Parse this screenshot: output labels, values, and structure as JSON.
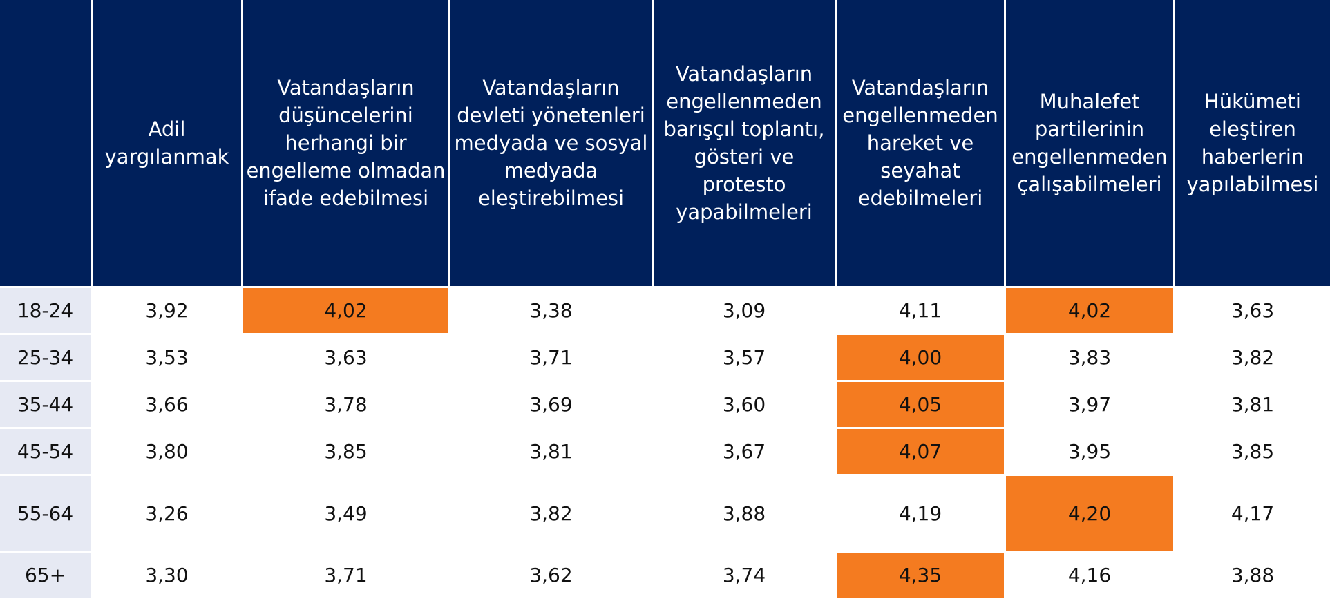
{
  "table": {
    "headers": [
      "",
      "Adil yargılanmak",
      "Vatandaşların düşüncelerini herhangi bir engelleme olmadan ifade edebilmesi",
      "Vatandaşların devleti yönetenleri medyada ve sosyal medyada eleştirebilmesi",
      "Vatandaşların engellenmeden barışçıl toplantı, gösteri ve protesto yapabilmeleri",
      "Vatandaşların engellenmeden hareket ve seyahat edebilmeleri",
      "Muhalefet partilerinin engellenmeden çalışabilmeleri",
      "Hükümeti eleştiren haberlerin yapılabilmesi"
    ],
    "rows": [
      {
        "age": "18-24",
        "values": [
          "3,92",
          "4,02",
          "3,38",
          "3,09",
          "4,11",
          "4,02",
          "3,63"
        ]
      },
      {
        "age": "25-34",
        "values": [
          "3,53",
          "3,63",
          "3,71",
          "3,57",
          "4,00",
          "3,83",
          "3,82"
        ]
      },
      {
        "age": "35-44",
        "values": [
          "3,66",
          "3,78",
          "3,69",
          "3,60",
          "4,05",
          "3,97",
          "3,81"
        ]
      },
      {
        "age": "45-54",
        "values": [
          "3,80",
          "3,85",
          "3,81",
          "3,67",
          "4,07",
          "3,95",
          "3,85"
        ]
      },
      {
        "age": "55-64",
        "values": [
          "3,26",
          "3,49",
          "3,82",
          "3,88",
          "4,19",
          "4,20",
          "4,17"
        ]
      },
      {
        "age": "65+",
        "values": [
          "3,30",
          "3,71",
          "3,62",
          "3,74",
          "4,35",
          "4,16",
          "3,88"
        ]
      }
    ]
  },
  "colors": {
    "header_bg": "#00205b",
    "highlight": "#f47b20",
    "age_cell_bg": "#e6e9f3"
  }
}
